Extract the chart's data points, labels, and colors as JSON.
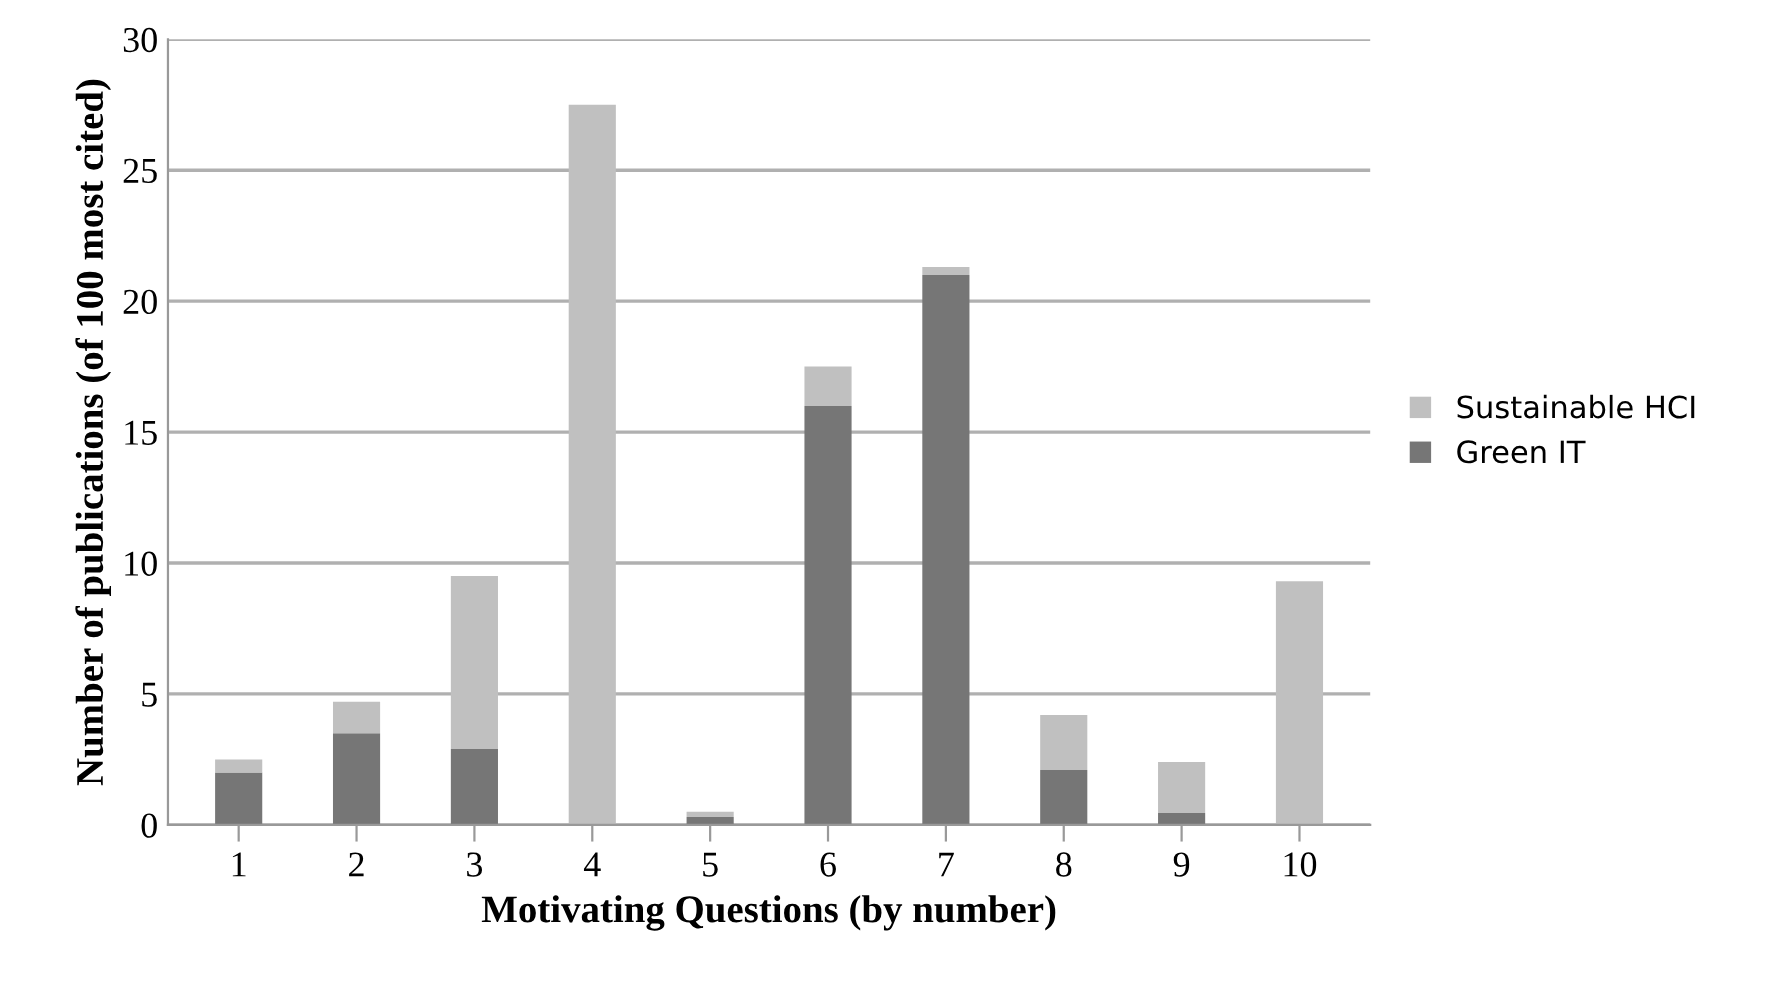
{
  "chart_data": {
    "type": "bar",
    "stacked": true,
    "xlabel": "Motivating Questions (by number)",
    "ylabel": "Number of publications (of 100 most cited)",
    "categories": [
      "1",
      "2",
      "3",
      "4",
      "5",
      "6",
      "7",
      "8",
      "9",
      "10"
    ],
    "series": [
      {
        "name": "Green IT",
        "color": "#767676",
        "values": [
          2,
          3.5,
          2.9,
          0,
          0.3,
          16,
          21,
          2.1,
          0.45,
          null
        ]
      },
      {
        "name": "Sustainable HCI",
        "color": "#c0c0c0",
        "values": [
          0.5,
          1.2,
          6.6,
          27.5,
          0.2,
          1.5,
          0.3,
          2.1,
          1.95,
          9.3
        ]
      }
    ],
    "ylim": [
      0,
      30
    ],
    "yticks": [
      0,
      5,
      10,
      15,
      20,
      25,
      30
    ],
    "grid": "y",
    "legend": "right"
  }
}
